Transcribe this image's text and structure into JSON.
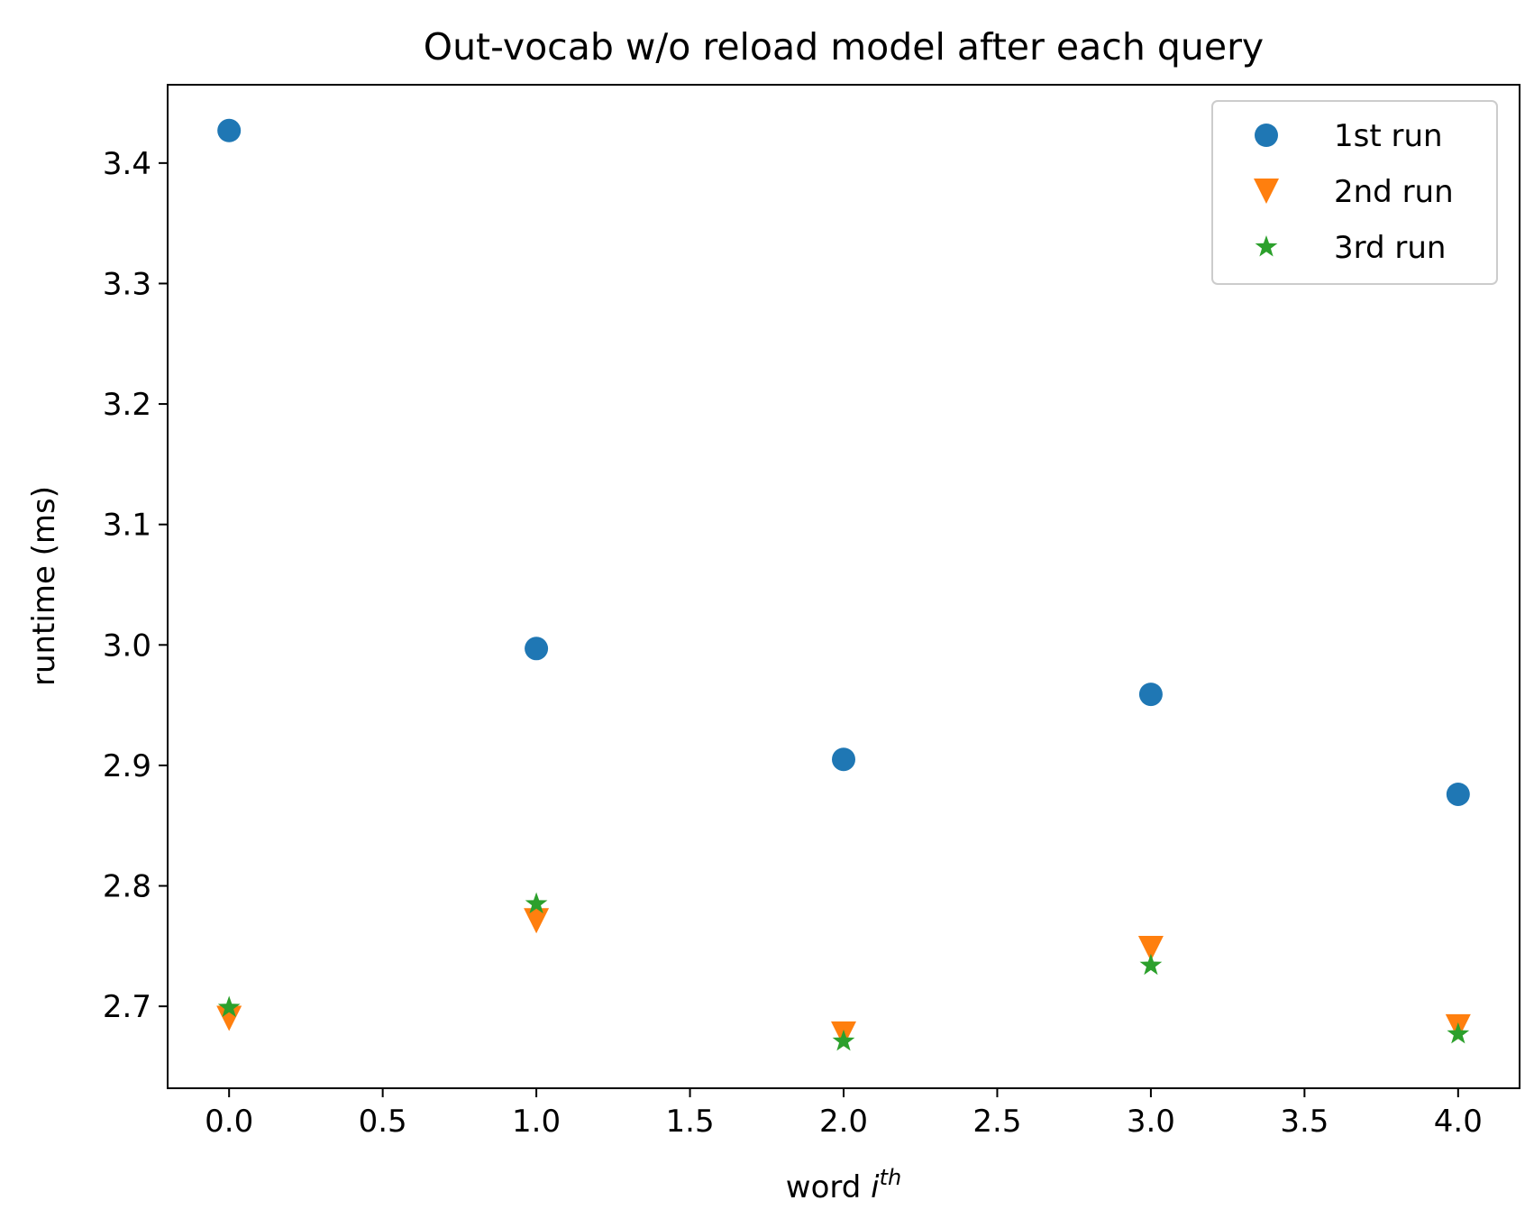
{
  "chart_data": {
    "type": "scatter",
    "title": "Out-vocab w/o reload model after each query",
    "xlabel": "word",
    "xlabel_superscript": "th",
    "xlabel_italic": "i",
    "ylabel": "runtime (ms)",
    "xlim": [
      -0.2,
      4.2
    ],
    "ylim": [
      2.632,
      3.465
    ],
    "xticks": [
      0.0,
      0.5,
      1.0,
      1.5,
      2.0,
      2.5,
      3.0,
      3.5,
      4.0
    ],
    "xtick_labels": [
      "0.0",
      "0.5",
      "1.0",
      "1.5",
      "2.0",
      "2.5",
      "3.0",
      "3.5",
      "4.0"
    ],
    "yticks": [
      2.7,
      2.8,
      2.9,
      3.0,
      3.1,
      3.2,
      3.3,
      3.4
    ],
    "ytick_labels": [
      "2.7",
      "2.8",
      "2.9",
      "3.0",
      "3.1",
      "3.2",
      "3.3",
      "3.4"
    ],
    "grid": false,
    "legend_position": "top-right",
    "series": [
      {
        "name": "1st run",
        "marker": "circle",
        "color": "#1f77b4",
        "x": [
          0,
          1,
          2,
          3,
          4
        ],
        "y": [
          3.427,
          2.997,
          2.905,
          2.959,
          2.876
        ]
      },
      {
        "name": "2nd run",
        "marker": "triangle-down",
        "color": "#ff7f0e",
        "x": [
          0,
          1,
          2,
          3,
          4
        ],
        "y": [
          2.69,
          2.771,
          2.677,
          2.748,
          2.683
        ]
      },
      {
        "name": "3rd run",
        "marker": "star",
        "color": "#2ca02c",
        "x": [
          0,
          1,
          2,
          3,
          4
        ],
        "y": [
          2.699,
          2.785,
          2.671,
          2.734,
          2.677
        ]
      }
    ]
  }
}
